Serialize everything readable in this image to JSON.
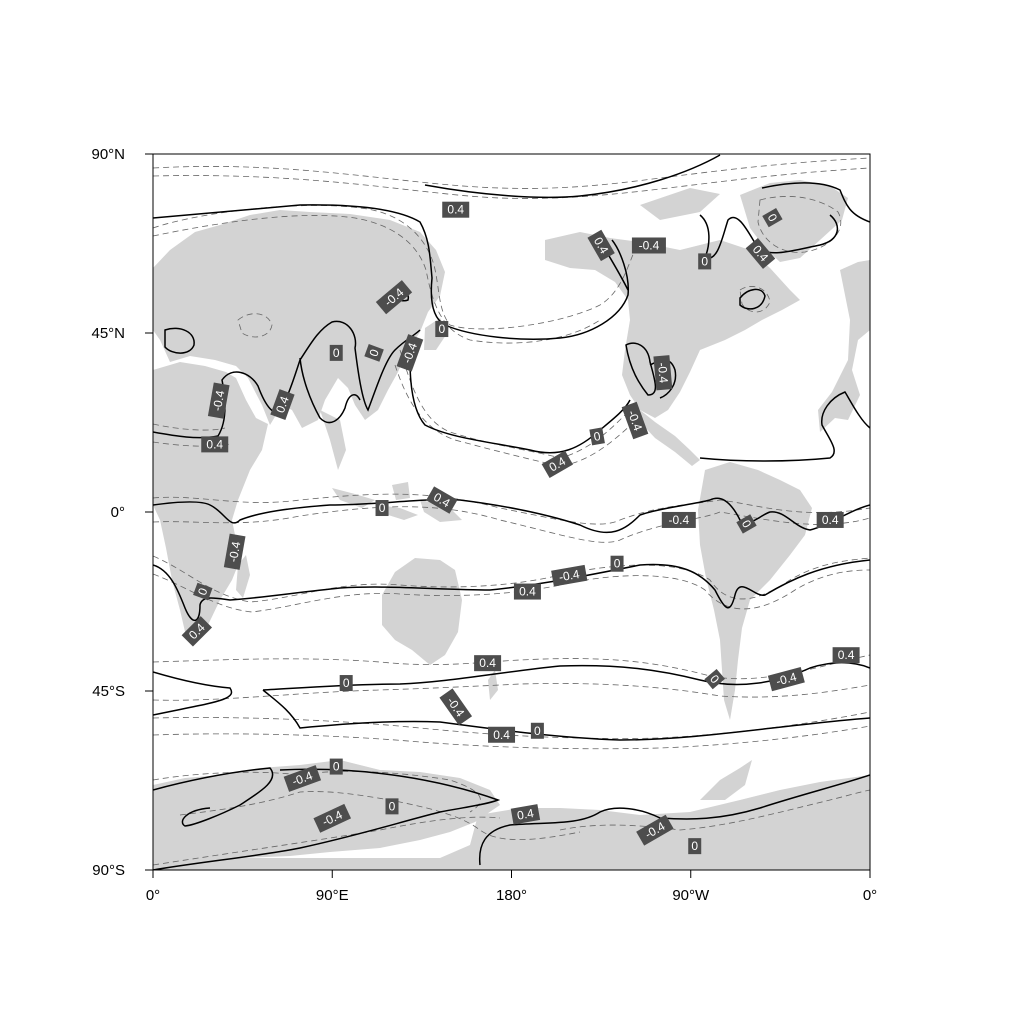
{
  "map": {
    "projection": "cylindrical-equidistant",
    "land_color": "#d3d3d3",
    "ocean_color": "#ffffff",
    "lon_ticks": [
      {
        "lon": 0,
        "label": "0°"
      },
      {
        "lon": 90,
        "label": "90°E"
      },
      {
        "lon": 180,
        "label": "180°"
      },
      {
        "lon": 270,
        "label": "90°W"
      },
      {
        "lon": 360,
        "label": "0°"
      }
    ],
    "lat_ticks": [
      {
        "lat": 90,
        "label": "90°N"
      },
      {
        "lat": 45,
        "label": "45°N"
      },
      {
        "lat": 0,
        "label": "0°"
      },
      {
        "lat": -45,
        "label": "45°S"
      },
      {
        "lat": -90,
        "label": "90°S"
      }
    ],
    "contour_labels": [
      {
        "lon": 152,
        "lat": 76,
        "text": "0.4",
        "angle": 0
      },
      {
        "lon": 225,
        "lat": 67,
        "text": "0.4",
        "angle": 60
      },
      {
        "lon": 249,
        "lat": 67,
        "text": "-0.4",
        "angle": 0
      },
      {
        "lon": 277,
        "lat": 63,
        "text": "0",
        "angle": 0
      },
      {
        "lon": 311,
        "lat": 74,
        "text": "0",
        "angle": 60
      },
      {
        "lon": 305,
        "lat": 65,
        "text": "0.4",
        "angle": 50
      },
      {
        "lon": 121,
        "lat": 54,
        "text": "-0.4",
        "angle": -40
      },
      {
        "lon": 145,
        "lat": 46,
        "text": "0",
        "angle": 0
      },
      {
        "lon": 92,
        "lat": 40,
        "text": "0",
        "angle": 0
      },
      {
        "lon": 111,
        "lat": 40,
        "text": "0",
        "angle": -70
      },
      {
        "lon": 129,
        "lat": 40,
        "text": "-0.4",
        "angle": -70
      },
      {
        "lon": 33,
        "lat": 28,
        "text": "-0.4",
        "angle": -80
      },
      {
        "lon": 65,
        "lat": 27,
        "text": "0.4",
        "angle": -70
      },
      {
        "lon": 31,
        "lat": 17,
        "text": "0.4",
        "angle": 0
      },
      {
        "lon": 256,
        "lat": 35,
        "text": "-0.4",
        "angle": 85
      },
      {
        "lon": 242,
        "lat": 23,
        "text": "-0.4",
        "angle": 70
      },
      {
        "lon": 223,
        "lat": 19,
        "text": "0",
        "angle": -10
      },
      {
        "lon": 203,
        "lat": 12,
        "text": "0.4",
        "angle": -30
      },
      {
        "lon": 115,
        "lat": 1,
        "text": "0",
        "angle": 0
      },
      {
        "lon": 145,
        "lat": 3,
        "text": "0.4",
        "angle": 30
      },
      {
        "lon": 264,
        "lat": -2,
        "text": "-0.4",
        "angle": 0
      },
      {
        "lon": 298,
        "lat": -3,
        "text": "0",
        "angle": 60
      },
      {
        "lon": 340,
        "lat": -2,
        "text": "0.4",
        "angle": 0
      },
      {
        "lon": 41,
        "lat": -10,
        "text": "-0.4",
        "angle": -80
      },
      {
        "lon": 209,
        "lat": -16,
        "text": "-0.4",
        "angle": -10
      },
      {
        "lon": 233,
        "lat": -13,
        "text": "0",
        "angle": 0
      },
      {
        "lon": 188,
        "lat": -20,
        "text": "0.4",
        "angle": 0
      },
      {
        "lon": 25,
        "lat": -20,
        "text": "0",
        "angle": -70
      },
      {
        "lon": 22,
        "lat": -30,
        "text": "0.4",
        "angle": -45
      },
      {
        "lon": 168,
        "lat": -38,
        "text": "0.4",
        "angle": 0
      },
      {
        "lon": 348,
        "lat": -36,
        "text": "0.4",
        "angle": 0
      },
      {
        "lon": 97,
        "lat": -43,
        "text": "0",
        "angle": 0
      },
      {
        "lon": 282,
        "lat": -42,
        "text": "0",
        "angle": 50
      },
      {
        "lon": 318,
        "lat": -42,
        "text": "-0.4",
        "angle": -15
      },
      {
        "lon": 152,
        "lat": -49,
        "text": "-0.4",
        "angle": 55
      },
      {
        "lon": 175,
        "lat": -56,
        "text": "0.4",
        "angle": 0
      },
      {
        "lon": 193,
        "lat": -55,
        "text": "0",
        "angle": 0
      },
      {
        "lon": 92,
        "lat": -64,
        "text": "0",
        "angle": 0
      },
      {
        "lon": 75,
        "lat": -67,
        "text": "-0.4",
        "angle": -20
      },
      {
        "lon": 120,
        "lat": -74,
        "text": "0",
        "angle": 0
      },
      {
        "lon": 90,
        "lat": -77,
        "text": "-0.4",
        "angle": -25
      },
      {
        "lon": 187,
        "lat": -76,
        "text": "0.4",
        "angle": -10
      },
      {
        "lon": 252,
        "lat": -80,
        "text": "-0.4",
        "angle": -30
      },
      {
        "lon": 272,
        "lat": -84,
        "text": "0",
        "angle": 0
      }
    ]
  }
}
